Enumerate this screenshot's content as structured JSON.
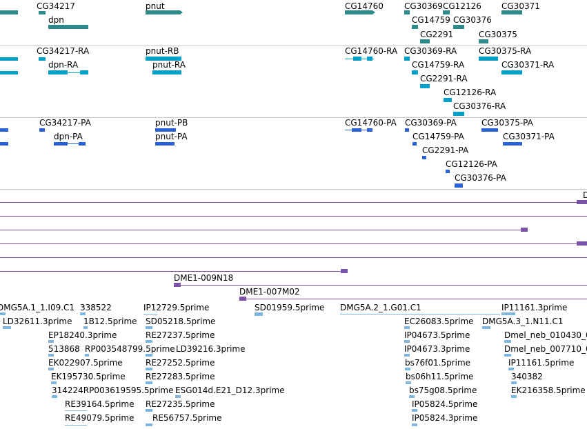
{
  "colors": {
    "gene": "#2e8b8b",
    "transcript": "#00a0c8",
    "protein": "#2a62d6",
    "clone": "#7a52a8",
    "est": "#7fb6df",
    "separator": "#c8c8c8"
  },
  "tracks": {
    "genes": [
      {
        "label": "CG34217"
      },
      {
        "label": "dpn"
      },
      {
        "label": "pnut"
      },
      {
        "label": "CG14760"
      },
      {
        "label": "CG30369"
      },
      {
        "label": "CG12126"
      },
      {
        "label": "CG30371"
      },
      {
        "label": "CG14759"
      },
      {
        "label": "CG30376"
      },
      {
        "label": "CG2291"
      },
      {
        "label": "CG30375"
      }
    ],
    "transcripts": [
      {
        "label": "CG34217-RA"
      },
      {
        "label": "dpn-RA"
      },
      {
        "label": "pnut-RB"
      },
      {
        "label": "pnut-RA"
      },
      {
        "label": "CG14760-RA"
      },
      {
        "label": "CG30369-RA"
      },
      {
        "label": "CG30375-RA"
      },
      {
        "label": "CG14759-RA"
      },
      {
        "label": "CG30371-RA"
      },
      {
        "label": "CG2291-RA"
      },
      {
        "label": "CG12126-RA"
      },
      {
        "label": "CG30376-RA"
      }
    ],
    "proteins": [
      {
        "label": "CG34217-PA"
      },
      {
        "label": "dpn-PA"
      },
      {
        "label": "pnut-PB"
      },
      {
        "label": "pnut-PA"
      },
      {
        "label": "CG14760-PA"
      },
      {
        "label": "CG30369-PA"
      },
      {
        "label": "CG30375-PA"
      },
      {
        "label": "CG14759-PA"
      },
      {
        "label": "CG30371-PA"
      },
      {
        "label": "CG2291-PA"
      },
      {
        "label": "CG12126-PA"
      },
      {
        "label": "CG30376-PA"
      }
    ],
    "clones": [
      {
        "label": "D"
      },
      {
        "label": "DME1-009N18"
      },
      {
        "label": "DME1-007M02"
      }
    ],
    "ests": [
      {
        "label": "DMG5A.1_1.I09.C1"
      },
      {
        "label": "338522"
      },
      {
        "label": "IP12729.5prime"
      },
      {
        "label": "SD01959.5prime"
      },
      {
        "label": "DMG5A.2_1.G01.C1"
      },
      {
        "label": "IP11161.3prime"
      },
      {
        "label": "LD32611.3prime"
      },
      {
        "label": "1B12.5prime"
      },
      {
        "label": "SD05218.5prime"
      },
      {
        "label": "EC26083.5prime"
      },
      {
        "label": "DMG5A.3_1.N11.C1"
      },
      {
        "label": "EP18240.3prime"
      },
      {
        "label": "RE27237.5prime"
      },
      {
        "label": "IP04673.5prime"
      },
      {
        "label": "Dmel_neb_010430_0"
      },
      {
        "label": "513868"
      },
      {
        "label": "RP003548799.5prime"
      },
      {
        "label": "LD39216.3prime"
      },
      {
        "label": "IP04673.3prime"
      },
      {
        "label": "Dmel_neb_007710_0"
      },
      {
        "label": "EK022907.5prime"
      },
      {
        "label": "RE27252.5prime"
      },
      {
        "label": "bs76f01.5prime"
      },
      {
        "label": "IP11161.5prime"
      },
      {
        "label": "EK195730.5prime"
      },
      {
        "label": "RE27283.5prime"
      },
      {
        "label": "bs06h11.5prime"
      },
      {
        "label": "340382"
      },
      {
        "label": "314224RP003619595.5prime"
      },
      {
        "label": "ESG014d.E21_D12.3prime"
      },
      {
        "label": "bs75g08.5prime"
      },
      {
        "label": "EK216358.5prime"
      },
      {
        "label": "RE39164.5prime"
      },
      {
        "label": "RE27235.5prime"
      },
      {
        "label": "IP05824.5prime"
      },
      {
        "label": "RE49079.5prime"
      },
      {
        "label": "RE56757.5prime"
      },
      {
        "label": "IP05824.3prime"
      }
    ]
  }
}
